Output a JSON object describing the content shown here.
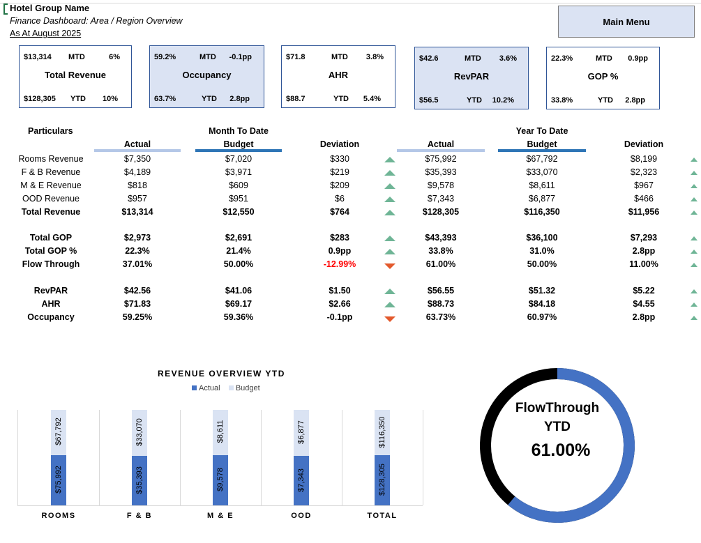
{
  "header": {
    "title": "Hotel Group Name",
    "subtitle": "Finance Dashboard: Area / Region Overview",
    "date": "As At August 2025",
    "menu_button": "Main Menu"
  },
  "kpis": [
    {
      "name": "Total Revenue",
      "mtd_value": "$13,314",
      "mtd_label": "MTD",
      "mtd_change": "6%",
      "ytd_value": "$128,305",
      "ytd_label": "YTD",
      "ytd_change": "10%"
    },
    {
      "name": "Occupancy",
      "mtd_value": "59.2%",
      "mtd_label": "MTD",
      "mtd_change": "-0.1pp",
      "ytd_value": "63.7%",
      "ytd_label": "YTD",
      "ytd_change": "2.8pp"
    },
    {
      "name": "AHR",
      "mtd_value": "$71.8",
      "mtd_label": "MTD",
      "mtd_change": "3.8%",
      "ytd_value": "$88.7",
      "ytd_label": "YTD",
      "ytd_change": "5.4%"
    },
    {
      "name": "RevPAR",
      "mtd_value": "$42.6",
      "mtd_label": "MTD",
      "mtd_change": "3.6%",
      "ytd_value": "$56.5",
      "ytd_label": "YTD",
      "ytd_change": "10.2%"
    },
    {
      "name": "GOP %",
      "mtd_value": "22.3%",
      "mtd_label": "MTD",
      "mtd_change": "0.9pp",
      "ytd_value": "33.8%",
      "ytd_label": "YTD",
      "ytd_change": "2.8pp"
    }
  ],
  "table": {
    "particulars_header": "Particulars",
    "mtd_group_header": "Month To Date",
    "ytd_group_header": "Year To Date",
    "col_actual": "Actual",
    "col_budget": "Budget",
    "col_deviation": "Deviation",
    "rows": [
      {
        "label": "Rooms Revenue",
        "mtd_actual": "$7,350",
        "mtd_budget": "$7,020",
        "mtd_dev": "$330",
        "mtd_trend": "up",
        "ytd_actual": "$75,992",
        "ytd_budget": "$67,792",
        "ytd_dev": "$8,199",
        "ytd_trend": "up"
      },
      {
        "label": "F & B Revenue",
        "mtd_actual": "$4,189",
        "mtd_budget": "$3,971",
        "mtd_dev": "$219",
        "mtd_trend": "up",
        "ytd_actual": "$35,393",
        "ytd_budget": "$33,070",
        "ytd_dev": "$2,323",
        "ytd_trend": "up"
      },
      {
        "label": "M & E Revenue",
        "mtd_actual": "$818",
        "mtd_budget": "$609",
        "mtd_dev": "$209",
        "mtd_trend": "up",
        "ytd_actual": "$9,578",
        "ytd_budget": "$8,611",
        "ytd_dev": "$967",
        "ytd_trend": "up"
      },
      {
        "label": "OOD Revenue",
        "mtd_actual": "$957",
        "mtd_budget": "$951",
        "mtd_dev": "$6",
        "mtd_trend": "up",
        "ytd_actual": "$7,343",
        "ytd_budget": "$6,877",
        "ytd_dev": "$466",
        "ytd_trend": "up"
      },
      {
        "label": "Total Revenue",
        "mtd_actual": "$13,314",
        "mtd_budget": "$12,550",
        "mtd_dev": "$764",
        "mtd_trend": "up",
        "ytd_actual": "$128,305",
        "ytd_budget": "$116,350",
        "ytd_dev": "$11,956",
        "ytd_trend": "up"
      },
      {
        "label": "Total GOP",
        "mtd_actual": "$2,973",
        "mtd_budget": "$2,691",
        "mtd_dev": "$283",
        "mtd_trend": "up",
        "ytd_actual": "$43,393",
        "ytd_budget": "$36,100",
        "ytd_dev": "$7,293",
        "ytd_trend": "up"
      },
      {
        "label": "Total GOP %",
        "mtd_actual": "22.3%",
        "mtd_budget": "21.4%",
        "mtd_dev": "0.9pp",
        "mtd_trend": "up",
        "ytd_actual": "33.8%",
        "ytd_budget": "31.0%",
        "ytd_dev": "2.8pp",
        "ytd_trend": "up"
      },
      {
        "label": "Flow Through",
        "mtd_actual": "37.01%",
        "mtd_budget": "50.00%",
        "mtd_dev": "-12.99%",
        "mtd_trend": "down",
        "ytd_actual": "61.00%",
        "ytd_budget": "50.00%",
        "ytd_dev": "11.00%",
        "ytd_trend": "up"
      },
      {
        "label": "RevPAR",
        "mtd_actual": "$42.56",
        "mtd_budget": "$41.06",
        "mtd_dev": "$1.50",
        "mtd_trend": "up",
        "ytd_actual": "$56.55",
        "ytd_budget": "$51.32",
        "ytd_dev": "$5.22",
        "ytd_trend": "up"
      },
      {
        "label": "AHR",
        "mtd_actual": "$71.83",
        "mtd_budget": "$69.17",
        "mtd_dev": "$2.66",
        "mtd_trend": "up",
        "ytd_actual": "$88.73",
        "ytd_budget": "$84.18",
        "ytd_dev": "$4.55",
        "ytd_trend": "up"
      },
      {
        "label": "Occupancy",
        "mtd_actual": "59.25%",
        "mtd_budget": "59.36%",
        "mtd_dev": "-0.1pp",
        "mtd_trend": "down",
        "ytd_actual": "63.73%",
        "ytd_budget": "60.97%",
        "ytd_dev": "2.8pp",
        "ytd_trend": "up"
      }
    ]
  },
  "colors": {
    "kpi_border": "#2f5597",
    "kpi_shade": "#dbe3f3",
    "actual_bar": "#4472c4",
    "budget_bar": "#dae3f3",
    "up_arrow": "#6fb596",
    "down_arrow": "#e3592c",
    "negative_text": "#ff0000",
    "donut_filled": "#4472c4",
    "donut_remaining": "#000000"
  },
  "chart_data": [
    {
      "type": "bar",
      "title": "REVENUE OVERVIEW YTD",
      "categories": [
        "ROOMS",
        "F & B",
        "M & E",
        "OOD",
        "TOTAL"
      ],
      "series": [
        {
          "name": "Actual",
          "values": [
            75992,
            35393,
            9578,
            7343,
            128305
          ],
          "labels": [
            "$75,992",
            "$35,393",
            "$9,578",
            "$7,343",
            "$128,305"
          ]
        },
        {
          "name": "Budget",
          "values": [
            67792,
            33070,
            8611,
            6877,
            116350
          ],
          "labels": [
            "$67,792",
            "$33,070",
            "$8,611",
            "$6,877",
            "$116,350"
          ]
        }
      ],
      "stacking": "100% stacked",
      "legend": "top",
      "grid": false
    },
    {
      "type": "pie",
      "subtype": "doughnut",
      "title": "FlowThrough YTD",
      "value": 0.61,
      "value_label": "61.00%"
    }
  ]
}
